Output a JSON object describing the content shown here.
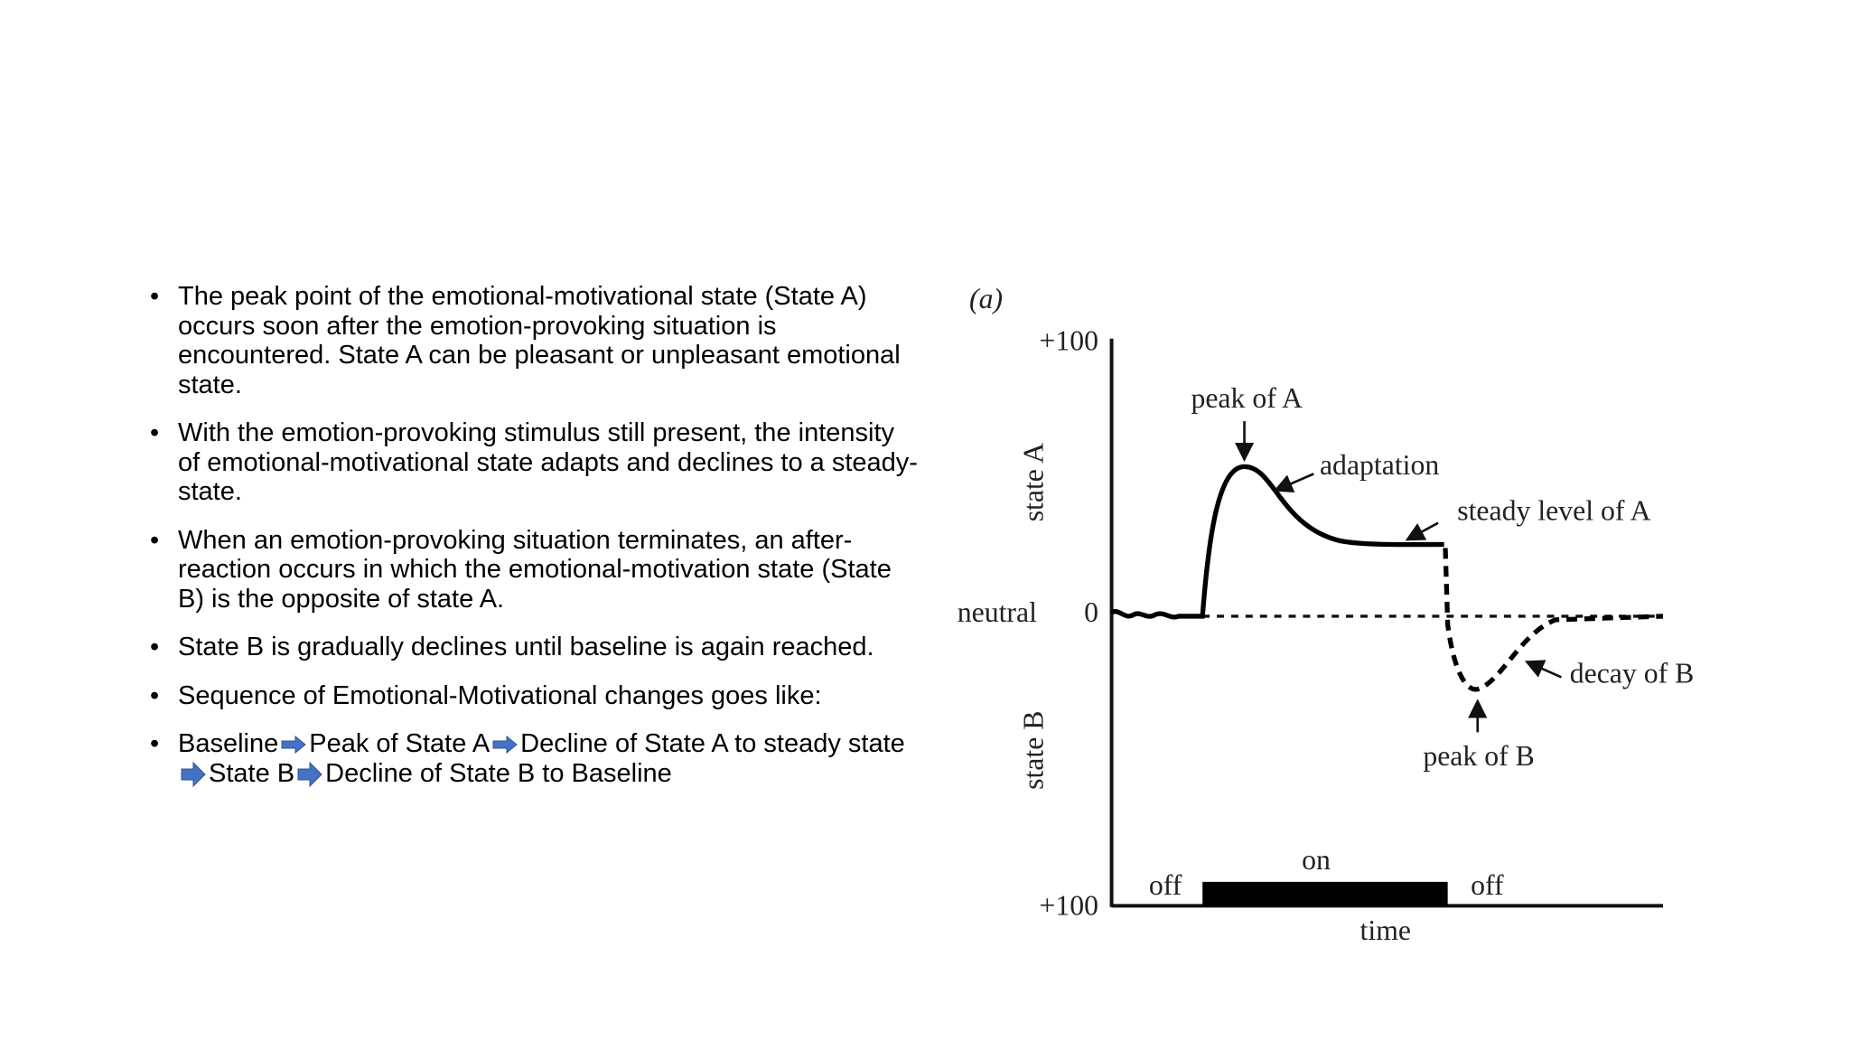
{
  "bullets": [
    "The peak point of the emotional-motivational state (State A) occurs soon after the emotion-provoking situation is encountered. State A can be pleasant or unpleasant emotional state.",
    "With the emotion-provoking stimulus still present, the intensity of emotional-motivational state adapts and declines to a steady-state.",
    "When an emotion-provoking situation terminates, an after-reaction occurs in which the emotional-motivation state (State B) is the opposite of state A.",
    "State B is gradually declines until baseline is again reached.",
    "Sequence of Emotional-Motivational changes goes like:"
  ],
  "sequence": [
    "Baseline",
    "Peak of State A",
    "Decline of State A to steady state",
    "State B",
    "Decline of State B to Baseline"
  ],
  "figure": {
    "panel": "(a)",
    "top_value": "+100",
    "zero_value": "0",
    "bottom_value": "+100",
    "neutral": "neutral",
    "state_a": "state A",
    "state_b": "state B",
    "peak_a": "peak of A",
    "adaptation": "adaptation",
    "steady": "steady level of A",
    "decay_b": "decay of B",
    "peak_b": "peak of B",
    "on": "on",
    "off_before": "off",
    "off_after": "off",
    "time": "time"
  }
}
